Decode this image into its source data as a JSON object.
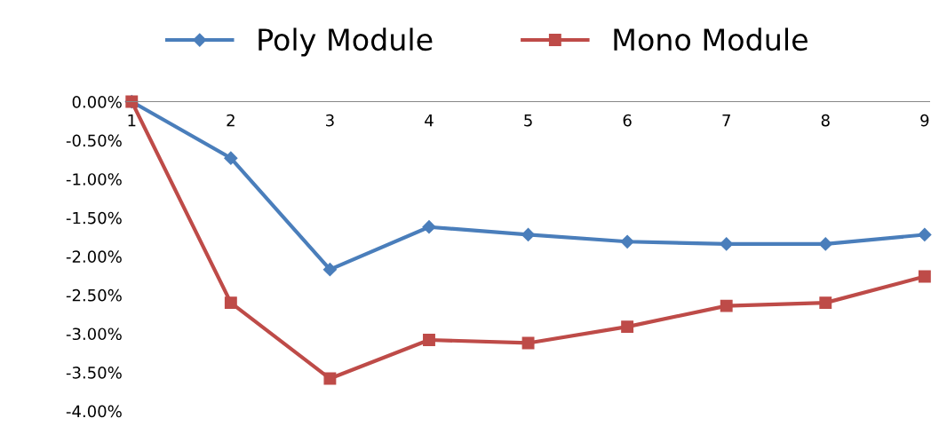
{
  "chart_data": {
    "type": "line",
    "categories": [
      "1",
      "2",
      "3",
      "4",
      "5",
      "6",
      "7",
      "8",
      "9"
    ],
    "series": [
      {
        "name": "Poly Module",
        "color": "#4a7ebb",
        "marker": "diamond",
        "values": [
          0,
          -0.73,
          -2.17,
          -1.62,
          -1.72,
          -1.81,
          -1.84,
          -1.84,
          -1.72
        ]
      },
      {
        "name": "Mono Module",
        "color": "#be4b48",
        "marker": "square",
        "values": [
          0,
          -2.6,
          -3.58,
          -3.08,
          -3.12,
          -2.91,
          -2.64,
          -2.6,
          -2.26
        ]
      }
    ],
    "ylim": [
      -4,
      0
    ],
    "yticks": [
      {
        "value": 0,
        "label": "0.00%"
      },
      {
        "value": -0.5,
        "label": "-0.50%"
      },
      {
        "value": -1,
        "label": "-1.00%"
      },
      {
        "value": -1.5,
        "label": "-1.50%"
      },
      {
        "value": -2,
        "label": "-2.00%"
      },
      {
        "value": -2.5,
        "label": "-2.50%"
      },
      {
        "value": -3,
        "label": "-3.00%"
      },
      {
        "value": -3.5,
        "label": "-3.50%"
      },
      {
        "value": -4,
        "label": "-4.00%"
      }
    ],
    "grid": false,
    "legend": "top",
    "line_style": "solid"
  }
}
